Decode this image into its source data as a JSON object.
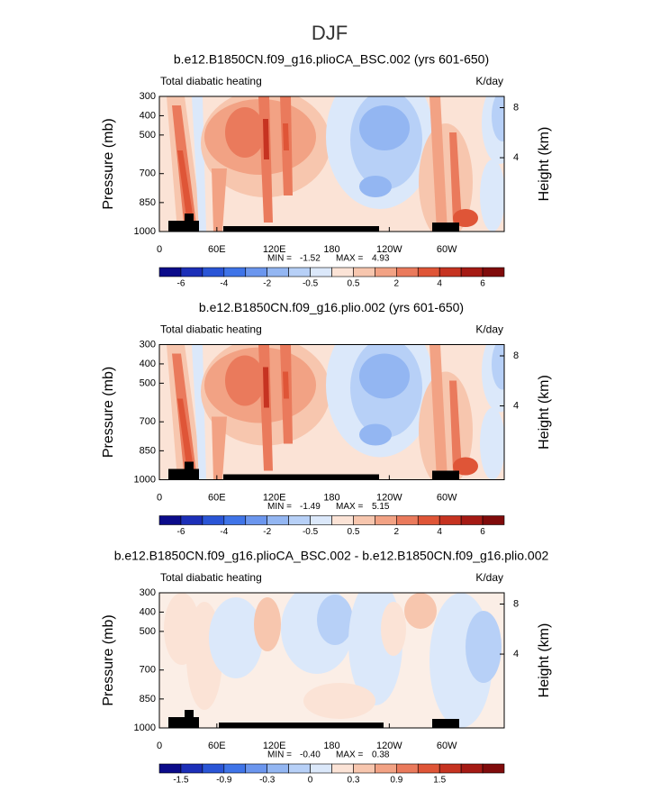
{
  "title": "DJF",
  "chart_data": [
    {
      "type": "contour",
      "title": "b.e12.B1850CN.f09_g16.plioCA_BSC.002 (yrs 601-650)",
      "left_label": "Total diabatic heating",
      "right_label": "K/day",
      "ylabel": "Pressure (mb)",
      "y2label": "Height (km)",
      "xlim": [
        0,
        360
      ],
      "xticks": [
        0,
        {
          "value": 60,
          "label": "60E"
        },
        {
          "value": 120,
          "label": "120E"
        },
        180,
        {
          "value": 240,
          "label": "120W"
        },
        {
          "value": 300,
          "label": "60W"
        }
      ],
      "ylim": [
        1000,
        300
      ],
      "yticks": [
        300,
        400,
        500,
        700,
        850,
        1000
      ],
      "y2lim": [
        -1.9,
        8.9
      ],
      "y2ticks": [
        4,
        8
      ],
      "min_text": "MIN =",
      "min": -1.52,
      "max_text": "MAX =",
      "max": 4.93,
      "colorbar": {
        "colors": [
          "#0b0b8a",
          "#1c2fb8",
          "#2a55d6",
          "#3f74e8",
          "#6b96ee",
          "#93b6f2",
          "#b7d0f7",
          "#dbe8fa",
          "#fbe3d6",
          "#f7c6ae",
          "#f2a284",
          "#ea7a5c",
          "#df5537",
          "#c63321",
          "#a51a14",
          "#800b0b"
        ],
        "ticks": [
          -6,
          -4,
          -2,
          -0.5,
          0.5,
          2,
          4,
          6
        ]
      }
    },
    {
      "type": "contour",
      "title": "b.e12.B1850CN.f09_g16.plio.002 (yrs 601-650)",
      "left_label": "Total diabatic heating",
      "right_label": "K/day",
      "ylabel": "Pressure (mb)",
      "y2label": "Height (km)",
      "xlim": [
        0,
        360
      ],
      "xticks": [
        0,
        {
          "value": 60,
          "label": "60E"
        },
        {
          "value": 120,
          "label": "120E"
        },
        180,
        {
          "value": 240,
          "label": "120W"
        },
        {
          "value": 300,
          "label": "60W"
        }
      ],
      "ylim": [
        1000,
        300
      ],
      "yticks": [
        300,
        400,
        500,
        700,
        850,
        1000
      ],
      "y2lim": [
        -1.9,
        8.9
      ],
      "y2ticks": [
        4,
        8
      ],
      "min_text": "MIN =",
      "min": -1.49,
      "max_text": "MAX =",
      "max": 5.15,
      "colorbar": {
        "colors": [
          "#0b0b8a",
          "#1c2fb8",
          "#2a55d6",
          "#3f74e8",
          "#6b96ee",
          "#93b6f2",
          "#b7d0f7",
          "#dbe8fa",
          "#fbe3d6",
          "#f7c6ae",
          "#f2a284",
          "#ea7a5c",
          "#df5537",
          "#c63321",
          "#a51a14",
          "#800b0b"
        ],
        "ticks": [
          -6,
          -4,
          -2,
          -0.5,
          0.5,
          2,
          4,
          6
        ]
      }
    },
    {
      "type": "contour",
      "title": "b.e12.B1850CN.f09_g16.plioCA_BSC.002 - b.e12.B1850CN.f09_g16.plio.002",
      "left_label": "Total diabatic heating",
      "right_label": "K/day",
      "ylabel": "Pressure (mb)",
      "y2label": "Height (km)",
      "xlim": [
        0,
        360
      ],
      "xticks": [
        0,
        {
          "value": 60,
          "label": "60E"
        },
        {
          "value": 120,
          "label": "120E"
        },
        180,
        {
          "value": 240,
          "label": "120W"
        },
        {
          "value": 300,
          "label": "60W"
        }
      ],
      "ylim": [
        1000,
        300
      ],
      "yticks": [
        300,
        400,
        500,
        700,
        850,
        1000
      ],
      "y2lim": [
        -1.9,
        8.9
      ],
      "y2ticks": [
        4,
        8
      ],
      "min_text": "MIN =",
      "min": {
        "value": -0.4,
        "label": "-0.40"
      },
      "max_text": "MAX =",
      "max": 0.38,
      "colorbar": {
        "colors": [
          "#0b0b8a",
          "#1c2fb8",
          "#2a55d6",
          "#3f74e8",
          "#6b96ee",
          "#93b6f2",
          "#b7d0f7",
          "#dbe8fa",
          "#fbe3d6",
          "#f7c6ae",
          "#f2a284",
          "#ea7a5c",
          "#df5537",
          "#c63321",
          "#a51a14",
          "#800b0b"
        ],
        "ticks": [
          -1.5,
          -0.9,
          -0.3,
          0,
          0.3,
          0.9,
          1.5
        ]
      }
    }
  ]
}
